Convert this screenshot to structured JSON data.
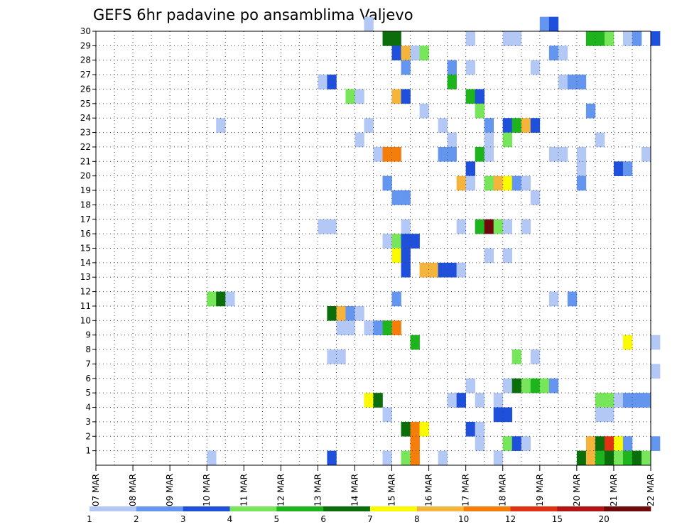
{
  "chart_data": {
    "type": "heatmap",
    "title": "GEFS 6hr padavine po ansamblima Valjevo",
    "xlabel": "",
    "ylabel": "",
    "x_ticks": [
      "07 MAR",
      "08 MAR",
      "09 MAR",
      "10 MAR",
      "11 MAR",
      "12 MAR",
      "13 MAR",
      "14 MAR",
      "15 MAR",
      "16 MAR",
      "17 MAR",
      "18 MAR",
      "19 MAR",
      "20 MAR",
      "21 MAR",
      "22 MAR"
    ],
    "y_ticks": [
      "1",
      "2",
      "3",
      "4",
      "5",
      "6",
      "7",
      "8",
      "9",
      "10",
      "11",
      "12",
      "13",
      "14",
      "15",
      "16",
      "17",
      "18",
      "19",
      "20",
      "21",
      "22",
      "23",
      "24",
      "25",
      "26",
      "27",
      "28",
      "29",
      "30"
    ],
    "y_range": [
      0,
      30
    ],
    "time_step_hours": 6,
    "grid": true,
    "colorbar": {
      "placement": "bottom",
      "labels": [
        "1",
        "2",
        "3",
        "4",
        "5",
        "6",
        "7",
        "8",
        "10",
        "12",
        "15",
        "20"
      ],
      "colors": [
        "#b4c8f5",
        "#6496f0",
        "#1e50dc",
        "#78e65a",
        "#1eb41e",
        "#0a6e0a",
        "#fafa00",
        "#f5b43c",
        "#f57d0a",
        "#e13214",
        "#b41414",
        "#6e0a0a"
      ]
    },
    "cells": [
      {
        "member": 30,
        "time_index": 29,
        "class": 1
      },
      {
        "member": 30,
        "time_index": 48,
        "class": 2
      },
      {
        "member": 30,
        "time_index": 49,
        "class": 3
      },
      {
        "member": 29,
        "time_index": 31,
        "class": 6
      },
      {
        "member": 29,
        "time_index": 32,
        "class": 6
      },
      {
        "member": 29,
        "time_index": 40,
        "class": 1
      },
      {
        "member": 29,
        "time_index": 44,
        "class": 1
      },
      {
        "member": 29,
        "time_index": 45,
        "class": 1
      },
      {
        "member": 29,
        "time_index": 53,
        "class": 5
      },
      {
        "member": 29,
        "time_index": 54,
        "class": 5
      },
      {
        "member": 29,
        "time_index": 55,
        "class": 4
      },
      {
        "member": 29,
        "time_index": 57,
        "class": 1
      },
      {
        "member": 29,
        "time_index": 58,
        "class": 2
      },
      {
        "member": 29,
        "time_index": 60,
        "class": 3
      },
      {
        "member": 28,
        "time_index": 32,
        "class": 3
      },
      {
        "member": 28,
        "time_index": 33,
        "class": 8
      },
      {
        "member": 28,
        "time_index": 34,
        "class": 1
      },
      {
        "member": 28,
        "time_index": 35,
        "class": 4
      },
      {
        "member": 28,
        "time_index": 49,
        "class": 2
      },
      {
        "member": 28,
        "time_index": 50,
        "class": 1
      },
      {
        "member": 27,
        "time_index": 33,
        "class": 2
      },
      {
        "member": 27,
        "time_index": 38,
        "class": 2
      },
      {
        "member": 27,
        "time_index": 40,
        "class": 1
      },
      {
        "member": 27,
        "time_index": 47,
        "class": 1
      },
      {
        "member": 26,
        "time_index": 24,
        "class": 1
      },
      {
        "member": 26,
        "time_index": 25,
        "class": 3
      },
      {
        "member": 26,
        "time_index": 38,
        "class": 5
      },
      {
        "member": 26,
        "time_index": 50,
        "class": 1
      },
      {
        "member": 26,
        "time_index": 51,
        "class": 2
      },
      {
        "member": 26,
        "time_index": 52,
        "class": 2
      },
      {
        "member": 25,
        "time_index": 27,
        "class": 4
      },
      {
        "member": 25,
        "time_index": 28,
        "class": 1
      },
      {
        "member": 25,
        "time_index": 32,
        "class": 8
      },
      {
        "member": 25,
        "time_index": 33,
        "class": 3
      },
      {
        "member": 25,
        "time_index": 40,
        "class": 5
      },
      {
        "member": 25,
        "time_index": 41,
        "class": 3
      },
      {
        "member": 24,
        "time_index": 35,
        "class": 1
      },
      {
        "member": 24,
        "time_index": 41,
        "class": 4
      },
      {
        "member": 24,
        "time_index": 53,
        "class": 2
      },
      {
        "member": 23,
        "time_index": 13,
        "class": 1
      },
      {
        "member": 23,
        "time_index": 29,
        "class": 1
      },
      {
        "member": 23,
        "time_index": 37,
        "class": 1
      },
      {
        "member": 23,
        "time_index": 42,
        "class": 2
      },
      {
        "member": 23,
        "time_index": 44,
        "class": 3
      },
      {
        "member": 23,
        "time_index": 45,
        "class": 5
      },
      {
        "member": 23,
        "time_index": 46,
        "class": 8
      },
      {
        "member": 23,
        "time_index": 47,
        "class": 3
      },
      {
        "member": 22,
        "time_index": 28,
        "class": 1
      },
      {
        "member": 22,
        "time_index": 38,
        "class": 1
      },
      {
        "member": 22,
        "time_index": 42,
        "class": 1
      },
      {
        "member": 22,
        "time_index": 44,
        "class": 4
      },
      {
        "member": 22,
        "time_index": 54,
        "class": 1
      },
      {
        "member": 21,
        "time_index": 30,
        "class": 1
      },
      {
        "member": 21,
        "time_index": 31,
        "class": 9
      },
      {
        "member": 21,
        "time_index": 32,
        "class": 9
      },
      {
        "member": 21,
        "time_index": 37,
        "class": 2
      },
      {
        "member": 21,
        "time_index": 38,
        "class": 2
      },
      {
        "member": 21,
        "time_index": 41,
        "class": 5
      },
      {
        "member": 21,
        "time_index": 42,
        "class": 1
      },
      {
        "member": 21,
        "time_index": 49,
        "class": 1
      },
      {
        "member": 21,
        "time_index": 50,
        "class": 1
      },
      {
        "member": 21,
        "time_index": 52,
        "class": 1
      },
      {
        "member": 21,
        "time_index": 59,
        "class": 1
      },
      {
        "member": 20,
        "time_index": 40,
        "class": 3
      },
      {
        "member": 20,
        "time_index": 52,
        "class": 1
      },
      {
        "member": 20,
        "time_index": 56,
        "class": 3
      },
      {
        "member": 20,
        "time_index": 57,
        "class": 2
      },
      {
        "member": 19,
        "time_index": 31,
        "class": 2
      },
      {
        "member": 19,
        "time_index": 39,
        "class": 8
      },
      {
        "member": 19,
        "time_index": 40,
        "class": 1
      },
      {
        "member": 19,
        "time_index": 42,
        "class": 4
      },
      {
        "member": 19,
        "time_index": 43,
        "class": 8
      },
      {
        "member": 19,
        "time_index": 44,
        "class": 7
      },
      {
        "member": 19,
        "time_index": 45,
        "class": 2
      },
      {
        "member": 19,
        "time_index": 46,
        "class": 1
      },
      {
        "member": 19,
        "time_index": 52,
        "class": 2
      },
      {
        "member": 18,
        "time_index": 32,
        "class": 2
      },
      {
        "member": 18,
        "time_index": 33,
        "class": 2
      },
      {
        "member": 18,
        "time_index": 47,
        "class": 1
      },
      {
        "member": 16,
        "time_index": 24,
        "class": 1
      },
      {
        "member": 16,
        "time_index": 25,
        "class": 1
      },
      {
        "member": 16,
        "time_index": 33,
        "class": 1
      },
      {
        "member": 16,
        "time_index": 39,
        "class": 1
      },
      {
        "member": 16,
        "time_index": 41,
        "class": 5
      },
      {
        "member": 16,
        "time_index": 42,
        "class": 12
      },
      {
        "member": 16,
        "time_index": 43,
        "class": 4
      },
      {
        "member": 16,
        "time_index": 44,
        "class": 1
      },
      {
        "member": 16,
        "time_index": 46,
        "class": 1
      },
      {
        "member": 15,
        "time_index": 31,
        "class": 1
      },
      {
        "member": 15,
        "time_index": 32,
        "class": 4
      },
      {
        "member": 15,
        "time_index": 33,
        "class": 3
      },
      {
        "member": 15,
        "time_index": 34,
        "class": 3
      },
      {
        "member": 14,
        "time_index": 32,
        "class": 7
      },
      {
        "member": 14,
        "time_index": 33,
        "class": 3
      },
      {
        "member": 14,
        "time_index": 42,
        "class": 1
      },
      {
        "member": 14,
        "time_index": 44,
        "class": 1
      },
      {
        "member": 13,
        "time_index": 33,
        "class": 3
      },
      {
        "member": 13,
        "time_index": 35,
        "class": 8
      },
      {
        "member": 13,
        "time_index": 36,
        "class": 8
      },
      {
        "member": 13,
        "time_index": 37,
        "class": 3
      },
      {
        "member": 13,
        "time_index": 38,
        "class": 3
      },
      {
        "member": 13,
        "time_index": 39,
        "class": 1
      },
      {
        "member": 11,
        "time_index": 12,
        "class": 4
      },
      {
        "member": 11,
        "time_index": 13,
        "class": 6
      },
      {
        "member": 11,
        "time_index": 14,
        "class": 1
      },
      {
        "member": 11,
        "time_index": 32,
        "class": 2
      },
      {
        "member": 11,
        "time_index": 49,
        "class": 1
      },
      {
        "member": 11,
        "time_index": 51,
        "class": 2
      },
      {
        "member": 10,
        "time_index": 25,
        "class": 6
      },
      {
        "member": 10,
        "time_index": 26,
        "class": 8
      },
      {
        "member": 10,
        "time_index": 27,
        "class": 2
      },
      {
        "member": 10,
        "time_index": 28,
        "class": 1
      },
      {
        "member": 9,
        "time_index": 26,
        "class": 1
      },
      {
        "member": 9,
        "time_index": 27,
        "class": 1
      },
      {
        "member": 9,
        "time_index": 29,
        "class": 1
      },
      {
        "member": 9,
        "time_index": 30,
        "class": 2
      },
      {
        "member": 9,
        "time_index": 31,
        "class": 5
      },
      {
        "member": 9,
        "time_index": 32,
        "class": 9
      },
      {
        "member": 8,
        "time_index": 34,
        "class": 5
      },
      {
        "member": 8,
        "time_index": 57,
        "class": 7
      },
      {
        "member": 8,
        "time_index": 60,
        "class": 1
      },
      {
        "member": 7,
        "time_index": 25,
        "class": 1
      },
      {
        "member": 7,
        "time_index": 26,
        "class": 1
      },
      {
        "member": 7,
        "time_index": 45,
        "class": 4
      },
      {
        "member": 7,
        "time_index": 47,
        "class": 1
      },
      {
        "member": 6,
        "time_index": 60,
        "class": 1
      },
      {
        "member": 5,
        "time_index": 40,
        "class": 1
      },
      {
        "member": 5,
        "time_index": 44,
        "class": 1
      },
      {
        "member": 5,
        "time_index": 45,
        "class": 6
      },
      {
        "member": 5,
        "time_index": 46,
        "class": 4
      },
      {
        "member": 5,
        "time_index": 47,
        "class": 5
      },
      {
        "member": 5,
        "time_index": 48,
        "class": 4
      },
      {
        "member": 5,
        "time_index": 49,
        "class": 2
      },
      {
        "member": 4,
        "time_index": 29,
        "class": 7
      },
      {
        "member": 4,
        "time_index": 30,
        "class": 6
      },
      {
        "member": 4,
        "time_index": 38,
        "class": 1
      },
      {
        "member": 4,
        "time_index": 39,
        "class": 3
      },
      {
        "member": 4,
        "time_index": 41,
        "class": 1
      },
      {
        "member": 4,
        "time_index": 43,
        "class": 1
      },
      {
        "member": 4,
        "time_index": 54,
        "class": 4
      },
      {
        "member": 4,
        "time_index": 55,
        "class": 4
      },
      {
        "member": 4,
        "time_index": 56,
        "class": 1
      },
      {
        "member": 4,
        "time_index": 57,
        "class": 2
      },
      {
        "member": 4,
        "time_index": 58,
        "class": 2
      },
      {
        "member": 4,
        "time_index": 59,
        "class": 2
      },
      {
        "member": 3,
        "time_index": 31,
        "class": 1
      },
      {
        "member": 3,
        "time_index": 43,
        "class": 3
      },
      {
        "member": 3,
        "time_index": 44,
        "class": 3
      },
      {
        "member": 3,
        "time_index": 54,
        "class": 1
      },
      {
        "member": 3,
        "time_index": 55,
        "class": 1
      },
      {
        "member": 2,
        "time_index": 33,
        "class": 6
      },
      {
        "member": 2,
        "time_index": 34,
        "class": 9
      },
      {
        "member": 2,
        "time_index": 35,
        "class": 7
      },
      {
        "member": 2,
        "time_index": 40,
        "class": 3
      },
      {
        "member": 2,
        "time_index": 41,
        "class": 1
      },
      {
        "member": 1,
        "time_index": 34,
        "class": 9
      },
      {
        "member": 1,
        "time_index": 41,
        "class": 1
      },
      {
        "member": 1,
        "time_index": 44,
        "class": 4
      },
      {
        "member": 1,
        "time_index": 45,
        "class": 3
      },
      {
        "member": 1,
        "time_index": 46,
        "class": 1
      },
      {
        "member": 1,
        "time_index": 53,
        "class": 8
      },
      {
        "member": 1,
        "time_index": 54,
        "class": 6
      },
      {
        "member": 1,
        "time_index": 55,
        "class": 10
      },
      {
        "member": 1,
        "time_index": 56,
        "class": 7
      },
      {
        "member": 1,
        "time_index": 57,
        "class": 2
      },
      {
        "member": 1,
        "time_index": 60,
        "class": 2
      },
      {
        "member": 0,
        "time_index": 12,
        "class": 1
      },
      {
        "member": 0,
        "time_index": 25,
        "class": 3
      },
      {
        "member": 0,
        "time_index": 31,
        "class": 1
      },
      {
        "member": 0,
        "time_index": 33,
        "class": 4
      },
      {
        "member": 0,
        "time_index": 34,
        "class": 9
      },
      {
        "member": 0,
        "time_index": 37,
        "class": 1
      },
      {
        "member": 0,
        "time_index": 43,
        "class": 1
      },
      {
        "member": 0,
        "time_index": 52,
        "class": 6
      },
      {
        "member": 0,
        "time_index": 53,
        "class": 8
      },
      {
        "member": 0,
        "time_index": 54,
        "class": 5
      },
      {
        "member": 0,
        "time_index": 55,
        "class": 6
      },
      {
        "member": 0,
        "time_index": 56,
        "class": 4
      },
      {
        "member": 0,
        "time_index": 57,
        "class": 5
      },
      {
        "member": 0,
        "time_index": 58,
        "class": 6
      },
      {
        "member": 0,
        "time_index": 59,
        "class": 4
      }
    ]
  }
}
